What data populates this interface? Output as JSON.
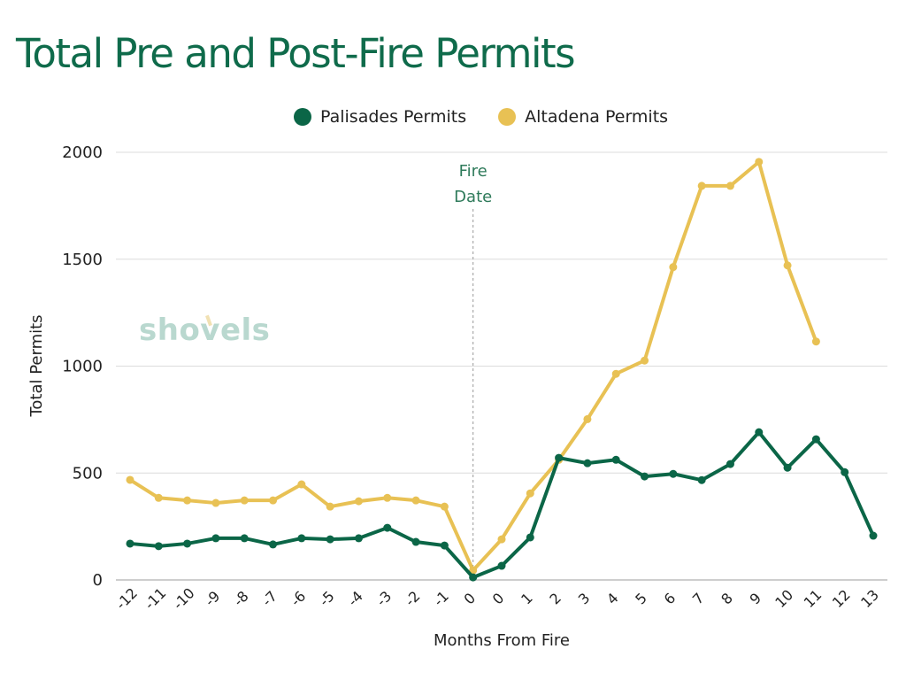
{
  "title": "Total Pre and Post-Fire Permits",
  "legend": [
    {
      "label": "Palisades Permits",
      "color": "#0b6647"
    },
    {
      "label": "Altadena Permits",
      "color": "#e8c154"
    }
  ],
  "watermark": "shovels",
  "annotation": {
    "line1": "Fire",
    "line2": "Date"
  },
  "axes": {
    "xlabel": "Months From Fire",
    "ylabel": "Total Permits",
    "yticks": [
      "0",
      "500",
      "1000",
      "1500",
      "2000"
    ]
  },
  "chart_data": {
    "type": "line",
    "title": "Total Pre and Post-Fire Permits",
    "xlabel": "Months From Fire",
    "ylabel": "Total Permits",
    "ylim": [
      0,
      2000
    ],
    "yticks": [
      0,
      500,
      1000,
      1500,
      2000
    ],
    "grid": true,
    "legend_position": "top",
    "categories": [
      "-12",
      "-11",
      "-10",
      "-9",
      "-8",
      "-7",
      "-6",
      "-5",
      "-4",
      "-3",
      "-2",
      "-1",
      "0",
      "0",
      "1",
      "2",
      "3",
      "4",
      "5",
      "6",
      "7",
      "8",
      "9",
      "10",
      "11",
      "12",
      "13"
    ],
    "series": [
      {
        "name": "Palisades Permits",
        "color": "#0b6647",
        "values": [
          170,
          158,
          170,
          195,
          195,
          166,
          195,
          190,
          195,
          244,
          178,
          161,
          12,
          66,
          199,
          571,
          546,
          562,
          484,
          496,
          467,
          542,
          691,
          525,
          658,
          504,
          207
        ]
      },
      {
        "name": "Altadena Permits",
        "color": "#e8c154",
        "values": [
          468,
          384,
          372,
          360,
          372,
          372,
          447,
          343,
          368,
          384,
          372,
          343,
          45,
          190,
          405,
          562,
          752,
          964,
          1026,
          1463,
          1843,
          1843,
          1955,
          1471,
          1115,
          null,
          null
        ]
      }
    ],
    "annotations": [
      {
        "text": "Fire Date",
        "x_index": 12,
        "style": "dashed vertical line"
      }
    ]
  }
}
